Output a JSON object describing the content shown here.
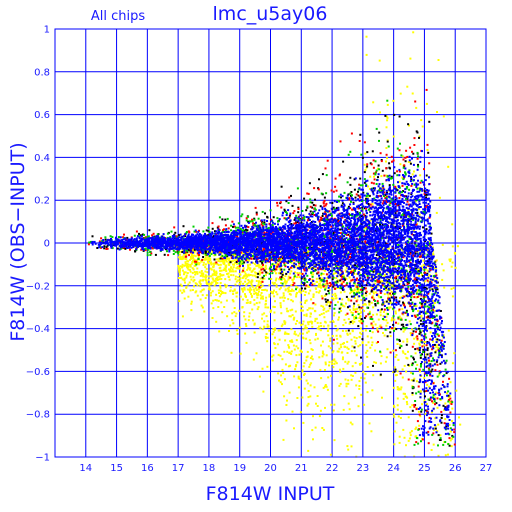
{
  "chart_data": {
    "type": "scatter",
    "title": "lmc_u5ay06",
    "subtitle": "All chips",
    "xlabel": "F814W INPUT",
    "ylabel": "F814W (OBS−INPUT)",
    "xlim": [
      13,
      27
    ],
    "ylim": [
      -1,
      1
    ],
    "x_ticks": [
      "14",
      "15",
      "16",
      "17",
      "18",
      "19",
      "20",
      "21",
      "22",
      "23",
      "24",
      "25",
      "26",
      "27"
    ],
    "y_ticks": [
      "−1",
      "−0.8",
      "−0.6",
      "−0.4",
      "−0.2",
      "0",
      "0.2",
      "0.4",
      "0.6",
      "0.8",
      "1"
    ],
    "grid": true,
    "point_colors": [
      "#ffff00",
      "#000000",
      "#ff0000",
      "#00cc00",
      "#0000ff"
    ],
    "description_model": {
      "x_start": 14.0,
      "x_turnover": 25.2,
      "x_end": 26.2,
      "blue_core_halfwidth_at_14": 0.02,
      "blue_core_halfwidth_at_24": 0.25,
      "yellow_negative_tail_peak_x": 22.0,
      "yellow_negative_tail_min_y": -0.7
    }
  },
  "axes_color": "#0000ff",
  "text_color": "#1a1aff"
}
